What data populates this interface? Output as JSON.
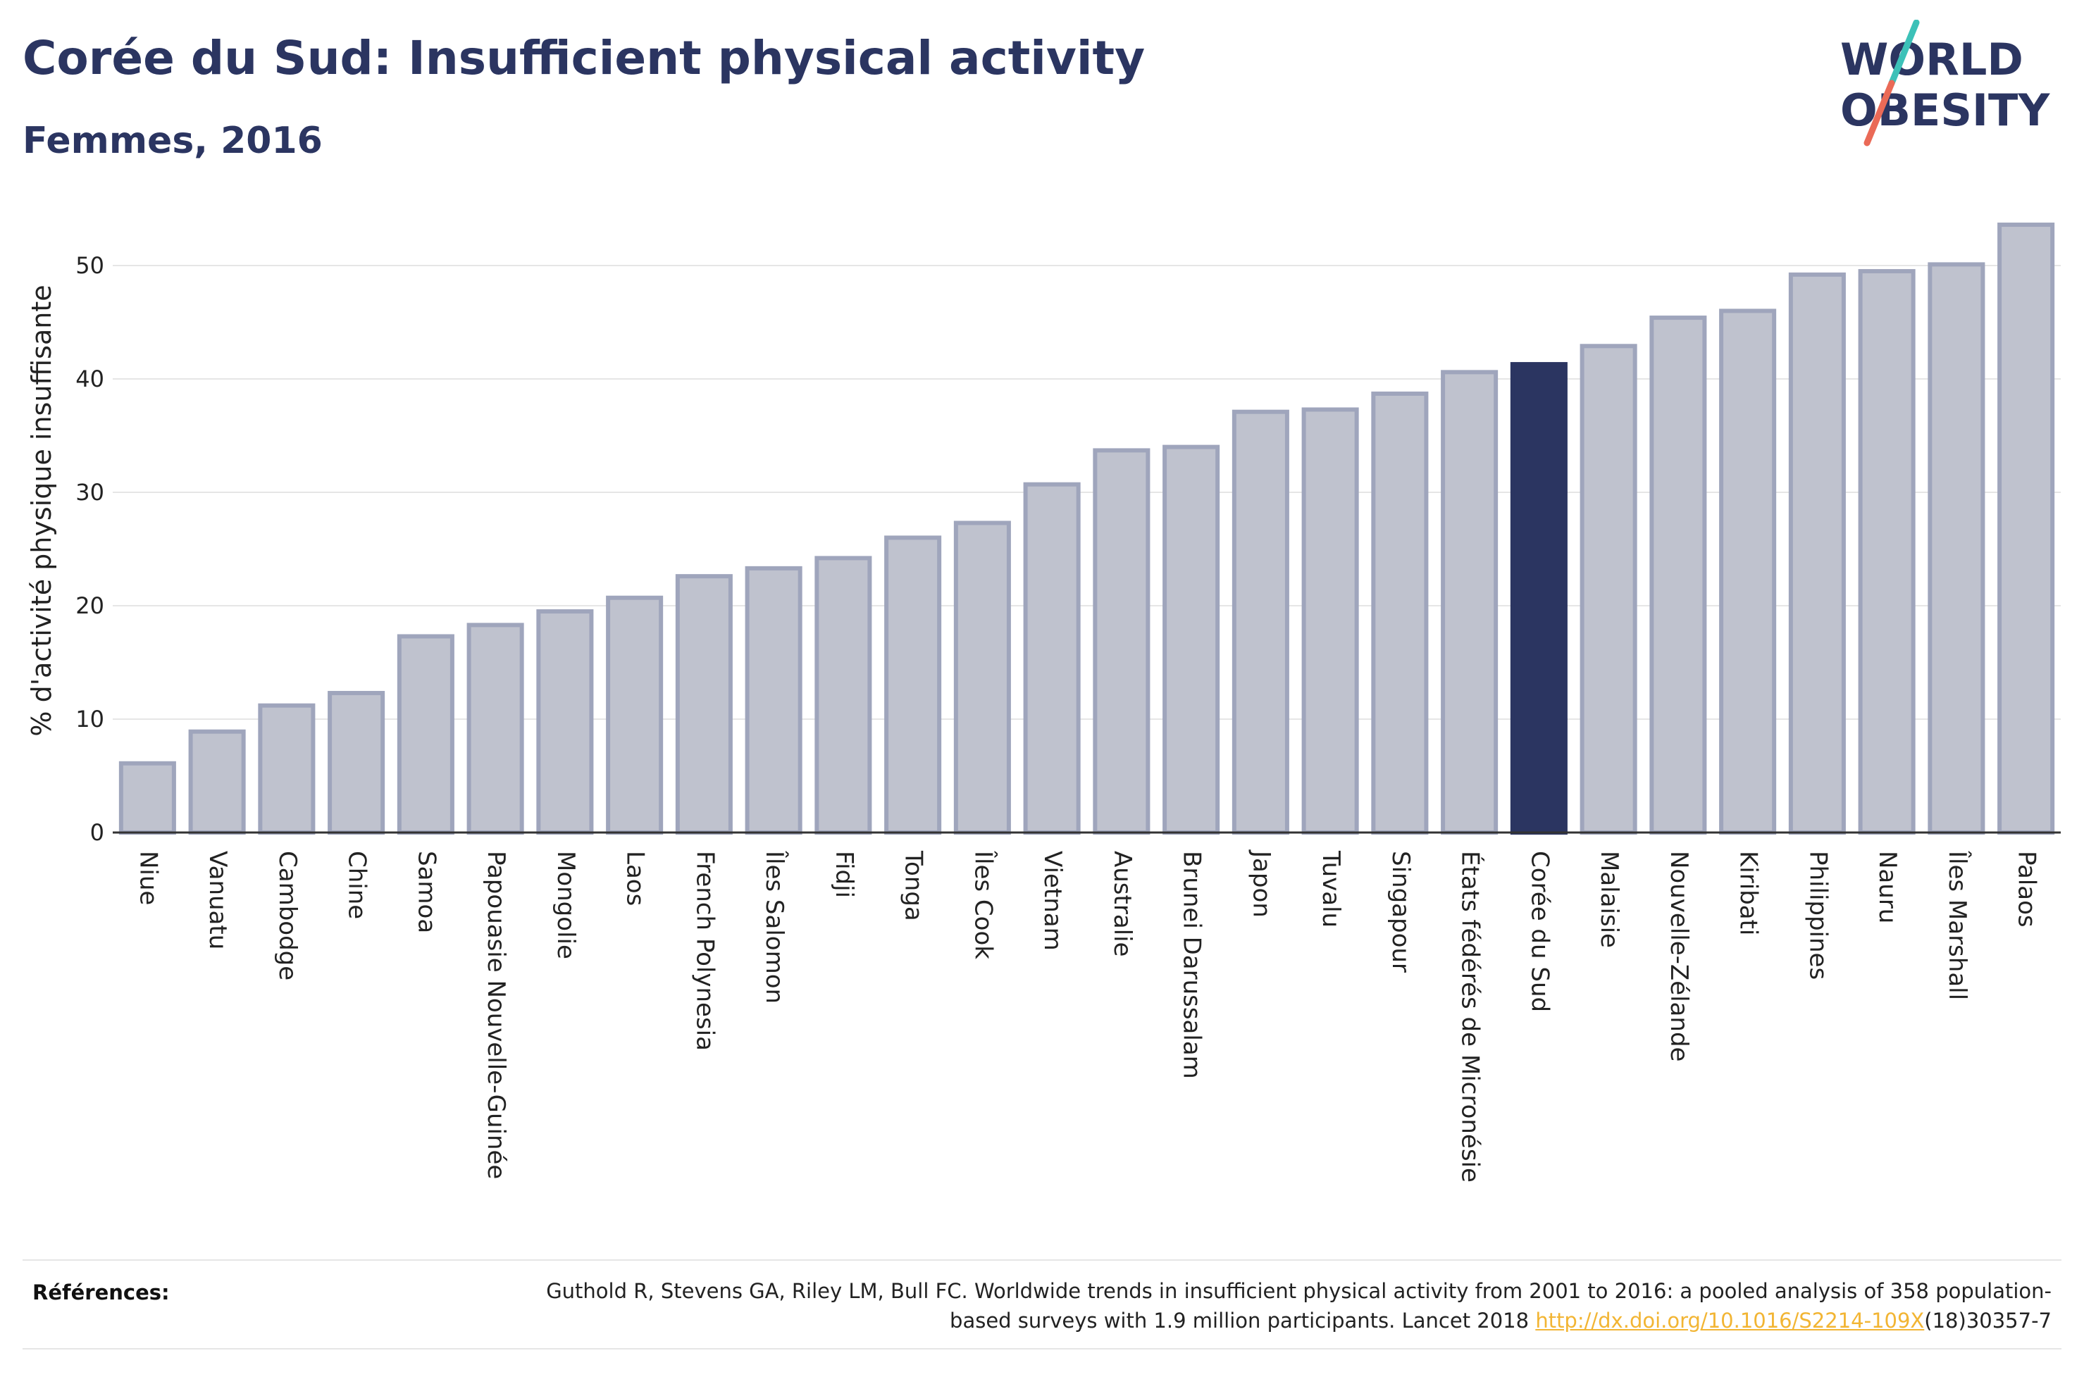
{
  "header": {
    "title": "Corée du Sud: Insufficient physical activity",
    "subtitle": "Femmes, 2016"
  },
  "logo": {
    "line1": "WORLD",
    "line2": "OBESITY",
    "colors": {
      "text": "#2b3561",
      "slash_top": "#3cc1b8",
      "slash_bottom": "#ea6a57"
    }
  },
  "chart_data": {
    "type": "bar",
    "title": "Corée du Sud: Insufficient physical activity",
    "subtitle": "Femmes, 2016",
    "xlabel": "",
    "ylabel": "% d'activité physique insuffisante",
    "ylim": [
      0,
      55
    ],
    "yticks": [
      0,
      10,
      20,
      30,
      40,
      50
    ],
    "grid": true,
    "highlight": "Corée du Sud",
    "colors": {
      "bar": "#bfc2ce",
      "bar_border": "#9fa5bc",
      "highlight": "#2b3561",
      "grid": "#e6e6e6",
      "axis": "#333333"
    },
    "categories": [
      "Niue",
      "Vanuatu",
      "Cambodge",
      "Chine",
      "Samoa",
      "Papouasie Nouvelle-Guinée",
      "Mongolie",
      "Laos",
      "French Polynesia",
      "Îles Salomon",
      "Fidji",
      "Tonga",
      "Îles Cook",
      "Vietnam",
      "Australie",
      "Brunei Darussalam",
      "Japon",
      "Tuvalu",
      "Singapour",
      "États fédérés de Micronésie",
      "Corée du Sud",
      "Malaisie",
      "Nouvelle-Zélande",
      "Kiribati",
      "Philippines",
      "Nauru",
      "Îles Marshall",
      "Palaos"
    ],
    "values": [
      6.1,
      8.9,
      11.2,
      12.3,
      17.3,
      18.3,
      19.5,
      20.7,
      22.6,
      23.3,
      24.2,
      26.0,
      27.3,
      30.7,
      33.7,
      34.0,
      37.1,
      37.3,
      38.7,
      40.6,
      41.3,
      42.9,
      45.4,
      46.0,
      49.2,
      49.5,
      50.1,
      53.6
    ]
  },
  "references": {
    "label": "Références:",
    "text_before": "Guthold R, Stevens GA, Riley LM, Bull FC. Worldwide trends in insufficient physical activity from 2001 to 2016: a pooled analysis of 358 population-based surveys with 1.9 million participants. Lancet 2018 ",
    "link_text": "http://dx.doi.org/10.1016/S2214-109X",
    "text_after": "(18)30357-7"
  }
}
